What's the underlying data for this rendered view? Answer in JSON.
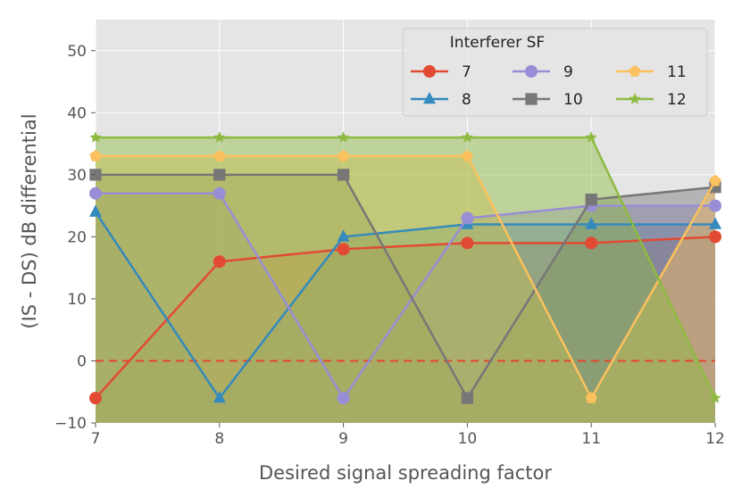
{
  "chart_data": {
    "type": "line",
    "title": "",
    "xlabel": "Desired signal spreading factor",
    "ylabel": "(IS - DS) dB differential",
    "x": [
      7,
      8,
      9,
      10,
      11,
      12
    ],
    "xlim": [
      7,
      12
    ],
    "ylim": [
      -10,
      55
    ],
    "xticks": [
      "7",
      "8",
      "9",
      "10",
      "11",
      "12"
    ],
    "yticks": [
      "−10",
      "0",
      "10",
      "20",
      "30",
      "40",
      "50"
    ],
    "grid": true,
    "fill_under_lines": true,
    "reference_line": {
      "y": 0,
      "style": "dashed",
      "color": "#E24A33"
    },
    "legend": {
      "title": "Interferer SF",
      "placement": "top-right",
      "columns": 3
    },
    "series": [
      {
        "name": "7",
        "color": "#E24A33",
        "marker": "circle",
        "values": [
          -6,
          16,
          18,
          19,
          19,
          20
        ]
      },
      {
        "name": "8",
        "color": "#348ABD",
        "marker": "triangle",
        "values": [
          24,
          -6,
          20,
          22,
          22,
          22
        ]
      },
      {
        "name": "9",
        "color": "#988ED5",
        "marker": "circle",
        "values": [
          27,
          27,
          -6,
          23,
          25,
          25
        ]
      },
      {
        "name": "10",
        "color": "#777777",
        "marker": "square",
        "values": [
          30,
          30,
          30,
          -6,
          26,
          28
        ]
      },
      {
        "name": "11",
        "color": "#FBC15E",
        "marker": "pentagon",
        "values": [
          33,
          33,
          33,
          33,
          -6,
          29
        ]
      },
      {
        "name": "12",
        "color": "#8EBA42",
        "marker": "star",
        "values": [
          36,
          36,
          36,
          36,
          36,
          -6
        ]
      }
    ]
  }
}
